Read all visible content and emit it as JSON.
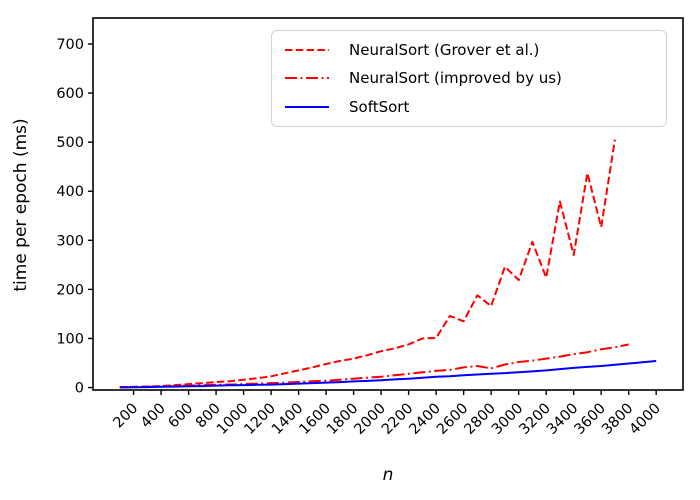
{
  "figure": {
    "background": "#ffffff",
    "text_color": "#000000",
    "axis_color": "#000000",
    "legend_border_color": "#d2d2d2"
  },
  "chart_data": {
    "type": "line",
    "title": "",
    "xlabel": "n",
    "ylabel": "time per epoch (ms)",
    "xlim": [
      -95,
      4195
    ],
    "ylim": [
      -5,
      753
    ],
    "x_ticks": [
      200,
      400,
      600,
      800,
      1000,
      1200,
      1400,
      1600,
      1800,
      2000,
      2200,
      2400,
      2600,
      2800,
      3000,
      3200,
      3400,
      3600,
      3800,
      4000
    ],
    "y_ticks": [
      0,
      100,
      200,
      300,
      400,
      500,
      600,
      700
    ],
    "x_tick_rotation_deg": 45,
    "grid": false,
    "legend_position": "upper right",
    "series": [
      {
        "name": "NeuralSort (Grover et al.)",
        "color": "#ff0000",
        "style": "dashed",
        "x": [
          100,
          200,
          300,
          400,
          500,
          600,
          700,
          800,
          900,
          1000,
          1100,
          1200,
          1300,
          1400,
          1500,
          1600,
          1700,
          1800,
          1900,
          2000,
          2100,
          2200,
          2300,
          2400,
          2500,
          2600,
          2700,
          2800,
          2900,
          3000,
          3100,
          3200,
          3300,
          3400,
          3500,
          3600,
          3700
        ],
        "y": [
          1,
          1.5,
          2,
          3,
          5,
          7,
          9,
          11,
          13,
          16,
          19,
          23,
          29,
          35,
          41,
          48,
          54,
          59,
          66,
          74,
          80,
          88,
          100,
          101,
          146,
          135,
          188,
          166,
          246,
          219,
          297,
          224,
          379,
          270,
          437,
          327,
          505
        ]
      },
      {
        "name": "NeuralSort (improved by us)",
        "color": "#ff0000",
        "style": "dashdot",
        "x": [
          100,
          200,
          300,
          400,
          500,
          600,
          700,
          800,
          900,
          1000,
          1100,
          1200,
          1300,
          1400,
          1500,
          1600,
          1700,
          1800,
          1900,
          2000,
          2100,
          2200,
          2300,
          2400,
          2500,
          2600,
          2700,
          2800,
          2900,
          3000,
          3100,
          3200,
          3300,
          3400,
          3500,
          3600,
          3700,
          3800
        ],
        "y": [
          0.5,
          1,
          1.5,
          2,
          3,
          4,
          5,
          5.5,
          6,
          7,
          8,
          9,
          10,
          11.5,
          13,
          14,
          16,
          18,
          20,
          22,
          25,
          28,
          31,
          34,
          36,
          41,
          44,
          39,
          47,
          52,
          55,
          59,
          63,
          68,
          72,
          78,
          82,
          88
        ]
      },
      {
        "name": "SoftSort",
        "color": "#0000ff",
        "style": "solid",
        "x": [
          100,
          200,
          300,
          400,
          500,
          600,
          700,
          800,
          900,
          1000,
          1100,
          1200,
          1300,
          1400,
          1500,
          1600,
          1700,
          1800,
          1900,
          2000,
          2100,
          2200,
          2300,
          2400,
          2500,
          2600,
          2700,
          2800,
          2900,
          3000,
          3100,
          3200,
          3300,
          3400,
          3500,
          3600,
          3700,
          3800,
          3900,
          4000
        ],
        "y": [
          0.3,
          0.6,
          1,
          1.5,
          2,
          2.5,
          3,
          4,
          4.5,
          5,
          5.5,
          6,
          7,
          8,
          9,
          10,
          11,
          12.5,
          13.5,
          15,
          16.5,
          18,
          20,
          22,
          23,
          25,
          26.5,
          28,
          29.5,
          31,
          33,
          35,
          37.5,
          40,
          42,
          44,
          46.5,
          49,
          51.5,
          54
        ]
      }
    ]
  }
}
